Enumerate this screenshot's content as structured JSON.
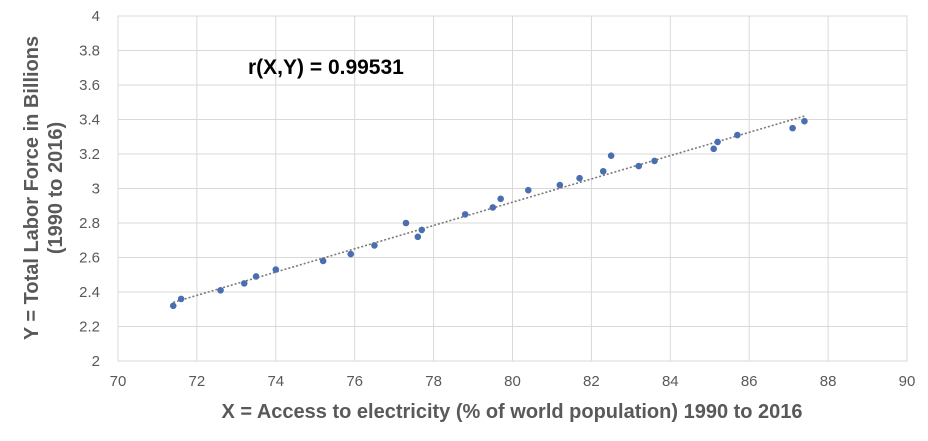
{
  "chart_data": {
    "type": "scatter",
    "title": "",
    "xlabel": "X  =  Access to electricity (% of world population) 1990 to 2016",
    "ylabel_line1": "Y  =  Total Labor Force in Billions",
    "ylabel_line2": "(1990 to 2016)",
    "annotation": "r(X,Y) = 0.99531",
    "xlim": [
      70,
      90
    ],
    "ylim": [
      2,
      4
    ],
    "xticks": [
      70,
      72,
      74,
      76,
      78,
      80,
      82,
      84,
      86,
      88,
      90
    ],
    "yticks": [
      2,
      2.2,
      2.4,
      2.6,
      2.8,
      3,
      3.2,
      3.4,
      3.6,
      3.8,
      4
    ],
    "ytick_labels": [
      "2",
      "2.2",
      "2.4",
      "2.6",
      "2.8",
      "3",
      "3.2",
      "3.4",
      "3.6",
      "3.8",
      "4"
    ],
    "grid": true,
    "legend": "none",
    "trendline": {
      "type": "linear",
      "style": "dotted",
      "x": [
        71.4,
        87.4
      ],
      "y": [
        2.34,
        3.42
      ]
    },
    "colors": {
      "points": "#4a6fb0",
      "trendline": "#7a7a7a",
      "grid": "#d9d9d9"
    },
    "points": [
      {
        "x": 71.4,
        "y": 2.32
      },
      {
        "x": 71.6,
        "y": 2.36
      },
      {
        "x": 72.6,
        "y": 2.41
      },
      {
        "x": 73.2,
        "y": 2.45
      },
      {
        "x": 73.5,
        "y": 2.49
      },
      {
        "x": 74.0,
        "y": 2.53
      },
      {
        "x": 75.2,
        "y": 2.58
      },
      {
        "x": 75.9,
        "y": 2.62
      },
      {
        "x": 76.5,
        "y": 2.67
      },
      {
        "x": 77.3,
        "y": 2.8
      },
      {
        "x": 77.6,
        "y": 2.72
      },
      {
        "x": 77.7,
        "y": 2.76
      },
      {
        "x": 78.8,
        "y": 2.85
      },
      {
        "x": 79.5,
        "y": 2.89
      },
      {
        "x": 79.7,
        "y": 2.94
      },
      {
        "x": 80.4,
        "y": 2.99
      },
      {
        "x": 81.2,
        "y": 3.02
      },
      {
        "x": 81.7,
        "y": 3.06
      },
      {
        "x": 82.3,
        "y": 3.1
      },
      {
        "x": 82.5,
        "y": 3.19
      },
      {
        "x": 83.2,
        "y": 3.13
      },
      {
        "x": 83.6,
        "y": 3.16
      },
      {
        "x": 85.1,
        "y": 3.23
      },
      {
        "x": 85.2,
        "y": 3.27
      },
      {
        "x": 85.7,
        "y": 3.31
      },
      {
        "x": 87.1,
        "y": 3.35
      },
      {
        "x": 87.4,
        "y": 3.39
      }
    ]
  }
}
